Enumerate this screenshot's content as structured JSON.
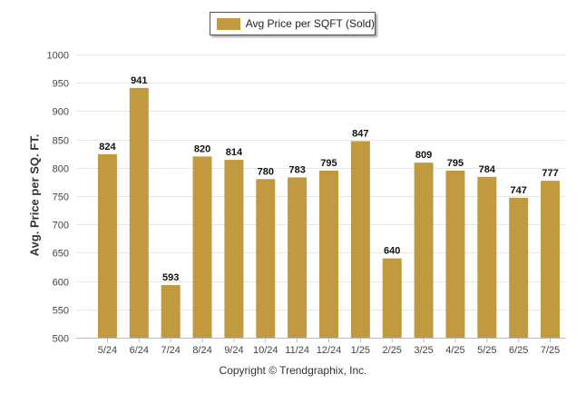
{
  "colors": {
    "bar": "#C19A3F",
    "grid": "#E6E6E6",
    "text": "#333333"
  },
  "legend": {
    "label": "Avg Price per SQFT (Sold)"
  },
  "credit": "Copyright © Trendgraphix, Inc.",
  "chart_data": {
    "type": "bar",
    "categories": [
      "5/24",
      "6/24",
      "7/24",
      "8/24",
      "9/24",
      "10/24",
      "11/24",
      "12/24",
      "1/25",
      "2/25",
      "3/25",
      "4/25",
      "5/25",
      "6/25",
      "7/25"
    ],
    "series": [
      {
        "name": "Avg Price per SQFT (Sold)",
        "values": [
          824,
          941,
          593,
          820,
          814,
          780,
          783,
          795,
          847,
          640,
          809,
          795,
          784,
          747,
          777
        ]
      }
    ],
    "ylabel": "Avg. Price per SQ. FT.",
    "xlabel": "",
    "ylim": [
      500,
      1000
    ],
    "yticks": [
      500,
      550,
      600,
      650,
      700,
      750,
      800,
      850,
      900,
      950,
      1000
    ],
    "grid": true,
    "legend_position": "top-center"
  }
}
